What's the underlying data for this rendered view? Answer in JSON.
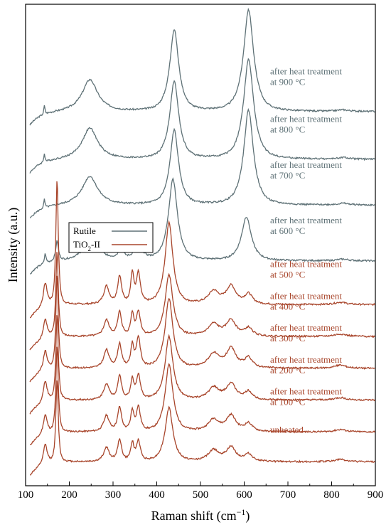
{
  "chart_data": {
    "type": "line",
    "xlabel": "Raman shift (cm",
    "xlabel_sup": "−1",
    "xlabel_end": ")",
    "ylabel": "Intensity (a.u.)",
    "xlim": [
      100,
      900
    ],
    "xticks": [
      100,
      200,
      300,
      400,
      500,
      600,
      700,
      800,
      900
    ],
    "y_ticks_shown": false,
    "grid": false,
    "colors": {
      "rutile": "#5e7176",
      "tio2ii": "#a8452b"
    },
    "legend": {
      "placement": "middle-left",
      "entries": [
        {
          "label": "Rutile",
          "phase": "rutile"
        },
        {
          "label": "TiO",
          "sub": "2",
          "label_end": "-II",
          "phase": "tio2ii"
        }
      ]
    },
    "series": [
      {
        "label_line1": "after heat treatment",
        "label_line2": "at 900 °C",
        "phase": "rutile",
        "offset": 8.6,
        "scale": 1.0,
        "peaks": [
          [
            143,
            0.22,
            3
          ],
          [
            247,
            0.8,
            40
          ],
          [
            440,
            2.05,
            23
          ],
          [
            610,
            2.55,
            26
          ],
          [
            826,
            0.04,
            30
          ]
        ],
        "base_start": 0,
        "base_end": 0
      },
      {
        "label_line1": "after heat treatment",
        "label_line2": "at 800 °C",
        "phase": "rutile",
        "offset": 7.4,
        "scale": 1.0,
        "peaks": [
          [
            143,
            0.22,
            3
          ],
          [
            247,
            0.78,
            40
          ],
          [
            440,
            1.95,
            23
          ],
          [
            610,
            2.5,
            26
          ],
          [
            826,
            0.04,
            30
          ]
        ],
        "base_start": 0,
        "base_end": 0
      },
      {
        "label_line1": "after heat treatment",
        "label_line2": "at 700 °C",
        "phase": "rutile",
        "offset": 6.25,
        "scale": 1.0,
        "peaks": [
          [
            143,
            0.22,
            3
          ],
          [
            247,
            0.72,
            40
          ],
          [
            440,
            1.88,
            22
          ],
          [
            610,
            2.38,
            25
          ],
          [
            826,
            0.04,
            30
          ]
        ],
        "base_start": 0,
        "base_end": 0
      },
      {
        "label_line1": "after heat treatment",
        "label_line2": "at 600 °C",
        "phase": "rutile",
        "offset": 4.85,
        "scale": 1.0,
        "peaks": [
          [
            145,
            0.25,
            4
          ],
          [
            172,
            0.5,
            7
          ],
          [
            250,
            0.5,
            40
          ],
          [
            318,
            0.22,
            15
          ],
          [
            358,
            0.35,
            20
          ],
          [
            437,
            2.05,
            23
          ],
          [
            605,
            1.1,
            25
          ],
          [
            826,
            0.04,
            30
          ]
        ],
        "base_start": 0,
        "base_end": 0
      },
      {
        "label_line1": "after heat treatment",
        "label_line2": "at 500 °C",
        "phase": "tio2ii",
        "offset": 3.75,
        "scale": 1.0,
        "peaks": [
          [
            145,
            0.6,
            10
          ],
          [
            172,
            3.2,
            6
          ],
          [
            285,
            0.45,
            14
          ],
          [
            315,
            0.7,
            10
          ],
          [
            344,
            0.75,
            8
          ],
          [
            358,
            0.75,
            10
          ],
          [
            428,
            2.05,
            20
          ],
          [
            530,
            0.32,
            28
          ],
          [
            570,
            0.45,
            25
          ],
          [
            610,
            0.25,
            20
          ],
          [
            820,
            0.06,
            30
          ]
        ],
        "base_start": 0,
        "base_end": 0
      },
      {
        "label_line1": "after heat treatment",
        "label_line2": "at 400 °C",
        "phase": "tio2ii",
        "offset": 2.95,
        "scale": 1.0,
        "peaks": [
          [
            145,
            0.5,
            10
          ],
          [
            172,
            2.2,
            6
          ],
          [
            285,
            0.4,
            14
          ],
          [
            315,
            0.6,
            10
          ],
          [
            344,
            0.55,
            8
          ],
          [
            358,
            0.6,
            10
          ],
          [
            428,
            1.55,
            20
          ],
          [
            530,
            0.3,
            28
          ],
          [
            570,
            0.4,
            25
          ],
          [
            610,
            0.2,
            20
          ],
          [
            820,
            0.06,
            30
          ]
        ],
        "base_start": 0,
        "base_end": 0
      },
      {
        "label_line1": "after heat treatment",
        "label_line2": "at 300 °C",
        "phase": "tio2ii",
        "offset": 2.15,
        "scale": 1.0,
        "peaks": [
          [
            145,
            0.5,
            10
          ],
          [
            172,
            2.4,
            6
          ],
          [
            285,
            0.45,
            14
          ],
          [
            315,
            0.6,
            10
          ],
          [
            344,
            0.55,
            8
          ],
          [
            358,
            0.75,
            10
          ],
          [
            428,
            1.75,
            20
          ],
          [
            530,
            0.35,
            28
          ],
          [
            570,
            0.48,
            25
          ],
          [
            610,
            0.25,
            20
          ],
          [
            820,
            0.08,
            30
          ]
        ],
        "base_start": 0,
        "base_end": 0
      },
      {
        "label_line1": "after heat treatment",
        "label_line2": "at 200 °C",
        "phase": "tio2ii",
        "offset": 1.35,
        "scale": 1.0,
        "peaks": [
          [
            145,
            0.55,
            10
          ],
          [
            172,
            2.2,
            6
          ],
          [
            285,
            0.4,
            14
          ],
          [
            315,
            0.6,
            10
          ],
          [
            344,
            0.5,
            8
          ],
          [
            358,
            0.6,
            10
          ],
          [
            428,
            1.6,
            20
          ],
          [
            530,
            0.3,
            28
          ],
          [
            570,
            0.4,
            25
          ],
          [
            610,
            0.2,
            20
          ],
          [
            820,
            0.06,
            30
          ]
        ],
        "base_start": 0,
        "base_end": 0
      },
      {
        "label_line1": "after heat treatment",
        "label_line2": "at 100 °C",
        "phase": "tio2ii",
        "offset": 0.55,
        "scale": 1.0,
        "peaks": [
          [
            145,
            0.5,
            10
          ],
          [
            172,
            2.2,
            6
          ],
          [
            285,
            0.4,
            14
          ],
          [
            315,
            0.6,
            10
          ],
          [
            344,
            0.5,
            8
          ],
          [
            358,
            0.6,
            10
          ],
          [
            428,
            1.7,
            20
          ],
          [
            530,
            0.3,
            28
          ],
          [
            570,
            0.4,
            25
          ],
          [
            610,
            0.2,
            20
          ],
          [
            820,
            0.06,
            30
          ]
        ],
        "base_start": 0,
        "base_end": 0
      },
      {
        "label_line1": "unheated",
        "label_line2": "",
        "phase": "tio2ii",
        "offset": -0.2,
        "scale": 1.0,
        "peaks": [
          [
            145,
            0.5,
            10
          ],
          [
            172,
            2.1,
            6
          ],
          [
            285,
            0.35,
            14
          ],
          [
            315,
            0.55,
            10
          ],
          [
            344,
            0.45,
            8
          ],
          [
            358,
            0.5,
            10
          ],
          [
            428,
            1.35,
            20
          ],
          [
            530,
            0.28,
            28
          ],
          [
            570,
            0.35,
            25
          ],
          [
            610,
            0.18,
            20
          ],
          [
            820,
            0.06,
            30
          ]
        ],
        "base_start": 0,
        "base_end": 0
      }
    ]
  }
}
